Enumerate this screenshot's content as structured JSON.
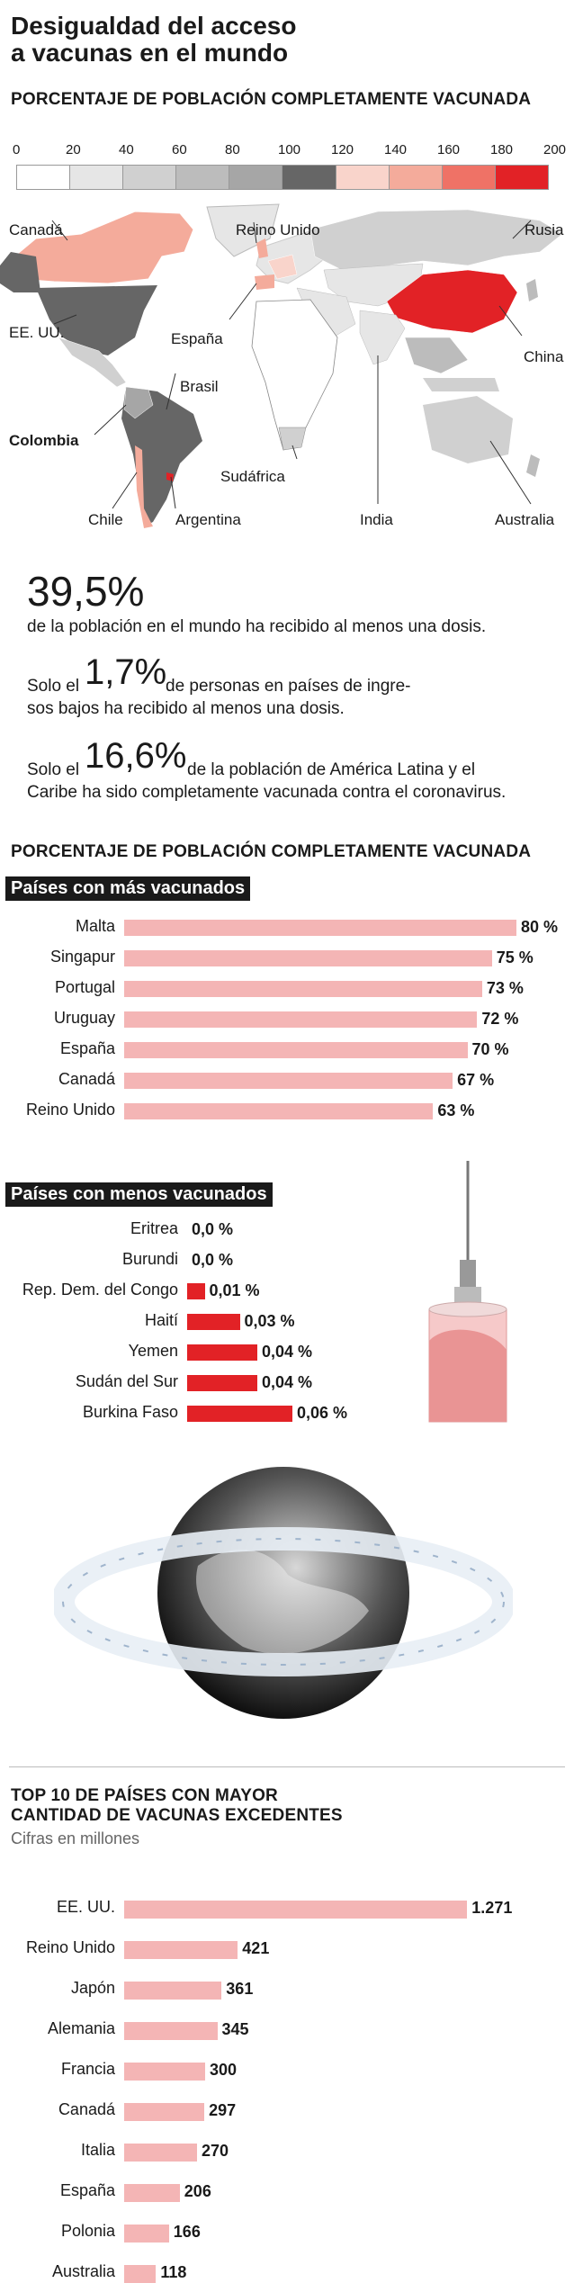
{
  "title": [
    "Desigualdad del acceso",
    "a vacunas en el mundo"
  ],
  "map_section_title": "PORCENTAJE DE POBLACIÓN COMPLETAMENTE VACUNADA",
  "scale": {
    "labels": [
      "0",
      "20",
      "40",
      "60",
      "80",
      "100",
      "120",
      "140",
      "160",
      "180",
      "200"
    ],
    "colors": [
      "#ffffff",
      "#e6e6e6",
      "#d0d0d0",
      "#bcbcbc",
      "#a6a6a6",
      "#666666",
      "#f9d4cb",
      "#f4ab9b",
      "#ef7266",
      "#e22226"
    ]
  },
  "map_labels": {
    "canada": "Canadá",
    "reino_unido": "Reino Unido",
    "rusia": "Rusia",
    "eeuu": "EE. UU.",
    "espana": "España",
    "china": "China",
    "brasil": "Brasil",
    "colombia": "Colombia",
    "sudafrica": "Sudáfrica",
    "chile": "Chile",
    "argentina": "Argentina",
    "india": "India",
    "australia": "Australia"
  },
  "stats": {
    "s1_big": "39,5%",
    "s1_text": "de la población en el mundo ha recibido al menos una dosis.",
    "s2_pre": "Solo el",
    "s2_big": "1,7%",
    "s2_text1": "de personas en países de ingre-",
    "s2_text2": "sos bajos ha recibido al menos una dosis.",
    "s3_pre": "Solo el",
    "s3_big": "16,6%",
    "s3_text1": "de la población de América Latina y el",
    "s3_text2": "Caribe ha sido completamente vacunada contra el coronavirus."
  },
  "section2_title": "PORCENTAJE DE POBLACIÓN COMPLETAMENTE VACUNADA",
  "more_tag": "Países con más vacunados",
  "less_tag": "Países con menos vacunados",
  "top10_title": [
    "TOP 10 DE PAÍSES CON MAYOR",
    "CANTIDAD DE VACUNAS EXCEDENTES"
  ],
  "top10_subtitle": "Cifras en millones",
  "colors": {
    "pink_bar": "#f4b5b5",
    "red_bar": "#e22226",
    "dark": "#1a1a1a"
  },
  "chart_data": [
    {
      "type": "bar",
      "title": "Países con más vacunados",
      "categories": [
        "Malta",
        "Singapur",
        "Portugal",
        "Uruguay",
        "España",
        "Canadá",
        "Reino Unido"
      ],
      "values": [
        80,
        75,
        73,
        72,
        70,
        67,
        63
      ],
      "value_labels": [
        "80 %",
        "75 %",
        "73 %",
        "72 %",
        "70 %",
        "67 %",
        "63 %"
      ]
    },
    {
      "type": "bar",
      "title": "Países con menos vacunados",
      "categories": [
        "Eritrea",
        "Burundi",
        "Rep. Dem. del Congo",
        "Haití",
        "Yemen",
        "Sudán del Sur",
        "Burkina Faso"
      ],
      "values": [
        0.0,
        0.0,
        0.01,
        0.03,
        0.04,
        0.04,
        0.06
      ],
      "value_labels": [
        "0,0 %",
        "0,0 %",
        "0,01 %",
        "0,03 %",
        "0,04 %",
        "0,04 %",
        "0,06 %"
      ]
    },
    {
      "type": "bar",
      "title": "TOP 10 DE PAÍSES CON MAYOR CANTIDAD DE VACUNAS EXCEDENTES",
      "categories": [
        "EE. UU.",
        "Reino Unido",
        "Japón",
        "Alemania",
        "Francia",
        "Canadá",
        "Italia",
        "España",
        "Polonia",
        "Australia"
      ],
      "values": [
        1271,
        421,
        361,
        345,
        300,
        297,
        270,
        206,
        166,
        118
      ],
      "value_labels": [
        "1.271",
        "421",
        "361",
        "345",
        "300",
        "297",
        "270",
        "206",
        "166",
        "118"
      ]
    }
  ]
}
